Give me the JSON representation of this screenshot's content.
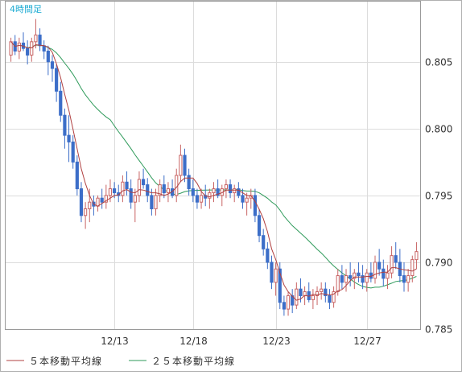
{
  "chart_data": {
    "type": "candlestick",
    "period_label": "4時間足",
    "ylim": [
      0.785,
      0.8095
    ],
    "y_ticks": [
      "0.805",
      "0.800",
      "0.795",
      "0.790",
      "0.785"
    ],
    "x_ticks": [
      {
        "label": "12/13",
        "index": 25
      },
      {
        "label": "12/18",
        "index": 44
      },
      {
        "label": "12/23",
        "index": 64
      },
      {
        "label": "12/27",
        "index": 86
      }
    ],
    "legend": [
      {
        "label": "５本移動平均線",
        "color": "#b04040"
      },
      {
        "label": "２５本移動平均線",
        "color": "#2e9a5a"
      }
    ],
    "colors": {
      "up": "#c86464",
      "down": "#3c6ec8",
      "ma5": "#b04040",
      "ma25": "#2e9a5a",
      "period_label": "#1aaad2"
    },
    "candles": [
      [
        0.8055,
        0.8068,
        0.805,
        0.8065
      ],
      [
        0.8065,
        0.807,
        0.8055,
        0.8058
      ],
      [
        0.8058,
        0.8068,
        0.8052,
        0.8064
      ],
      [
        0.8064,
        0.8072,
        0.8058,
        0.806
      ],
      [
        0.806,
        0.8066,
        0.8048,
        0.8055
      ],
      [
        0.8055,
        0.8068,
        0.805,
        0.8065
      ],
      [
        0.8065,
        0.8082,
        0.806,
        0.807
      ],
      [
        0.807,
        0.8075,
        0.8058,
        0.8062
      ],
      [
        0.8062,
        0.8066,
        0.8052,
        0.8058
      ],
      [
        0.8058,
        0.8062,
        0.804,
        0.805
      ],
      [
        0.805,
        0.8055,
        0.8035,
        0.8045
      ],
      [
        0.8045,
        0.8048,
        0.802,
        0.8028
      ],
      [
        0.8028,
        0.8035,
        0.8005,
        0.801
      ],
      [
        0.801,
        0.8015,
        0.7985,
        0.7995
      ],
      [
        0.7995,
        0.801,
        0.7975,
        0.799
      ],
      [
        0.799,
        0.7995,
        0.797,
        0.7975
      ],
      [
        0.7975,
        0.798,
        0.795,
        0.7955
      ],
      [
        0.7955,
        0.796,
        0.793,
        0.7935
      ],
      [
        0.7935,
        0.7945,
        0.7925,
        0.794
      ],
      [
        0.794,
        0.7955,
        0.793,
        0.7945
      ],
      [
        0.7945,
        0.795,
        0.7935,
        0.7942
      ],
      [
        0.7942,
        0.795,
        0.7938,
        0.7948
      ],
      [
        0.7948,
        0.7955,
        0.794,
        0.7945
      ],
      [
        0.7945,
        0.7958,
        0.794,
        0.795
      ],
      [
        0.795,
        0.7962,
        0.7945,
        0.7955
      ],
      [
        0.7955,
        0.796,
        0.7948,
        0.7952
      ],
      [
        0.7952,
        0.7958,
        0.7945,
        0.795
      ],
      [
        0.795,
        0.7965,
        0.7945,
        0.796
      ],
      [
        0.796,
        0.7968,
        0.795,
        0.7955
      ],
      [
        0.7955,
        0.7962,
        0.794,
        0.7945
      ],
      [
        0.7945,
        0.7955,
        0.793,
        0.795
      ],
      [
        0.795,
        0.7968,
        0.7945,
        0.7962
      ],
      [
        0.7962,
        0.797,
        0.7955,
        0.7958
      ],
      [
        0.7958,
        0.7963,
        0.7945,
        0.795
      ],
      [
        0.795,
        0.7955,
        0.7935,
        0.794
      ],
      [
        0.794,
        0.7955,
        0.7935,
        0.795
      ],
      [
        0.795,
        0.7962,
        0.7945,
        0.7958
      ],
      [
        0.7958,
        0.7965,
        0.7948,
        0.7952
      ],
      [
        0.7952,
        0.796,
        0.7945,
        0.7955
      ],
      [
        0.7955,
        0.7962,
        0.7948,
        0.795
      ],
      [
        0.795,
        0.797,
        0.7945,
        0.7965
      ],
      [
        0.7965,
        0.7988,
        0.796,
        0.798
      ],
      [
        0.798,
        0.7985,
        0.796,
        0.7965
      ],
      [
        0.7965,
        0.797,
        0.795,
        0.7955
      ],
      [
        0.7955,
        0.7962,
        0.7945,
        0.795
      ],
      [
        0.795,
        0.7955,
        0.794,
        0.7945
      ],
      [
        0.7945,
        0.7955,
        0.794,
        0.795
      ],
      [
        0.795,
        0.7958,
        0.7942,
        0.7948
      ],
      [
        0.7948,
        0.7955,
        0.794,
        0.7952
      ],
      [
        0.7952,
        0.796,
        0.7945,
        0.7955
      ],
      [
        0.7955,
        0.7962,
        0.7948,
        0.795
      ],
      [
        0.795,
        0.7958,
        0.7942,
        0.7955
      ],
      [
        0.7955,
        0.7962,
        0.7948,
        0.7958
      ],
      [
        0.7958,
        0.7962,
        0.7948,
        0.7952
      ],
      [
        0.7952,
        0.7958,
        0.7945,
        0.7955
      ],
      [
        0.7955,
        0.796,
        0.7948,
        0.795
      ],
      [
        0.795,
        0.7955,
        0.794,
        0.7945
      ],
      [
        0.7945,
        0.7952,
        0.7935,
        0.7948
      ],
      [
        0.7948,
        0.7955,
        0.794,
        0.795
      ],
      [
        0.795,
        0.7955,
        0.793,
        0.7935
      ],
      [
        0.7935,
        0.794,
        0.7915,
        0.792
      ],
      [
        0.792,
        0.7925,
        0.7905,
        0.791
      ],
      [
        0.791,
        0.7915,
        0.7895,
        0.79
      ],
      [
        0.79,
        0.7905,
        0.788,
        0.7885
      ],
      [
        0.7885,
        0.79,
        0.7875,
        0.7895
      ],
      [
        0.7895,
        0.79,
        0.7865,
        0.787
      ],
      [
        0.787,
        0.7875,
        0.786,
        0.7865
      ],
      [
        0.7865,
        0.7878,
        0.786,
        0.7875
      ],
      [
        0.7875,
        0.788,
        0.7862,
        0.7868
      ],
      [
        0.7868,
        0.7885,
        0.7865,
        0.788
      ],
      [
        0.788,
        0.7888,
        0.787,
        0.7875
      ],
      [
        0.7875,
        0.7882,
        0.7868,
        0.7878
      ],
      [
        0.7878,
        0.7885,
        0.787,
        0.7872
      ],
      [
        0.7872,
        0.788,
        0.7865,
        0.7875
      ],
      [
        0.7875,
        0.7882,
        0.7868,
        0.7878
      ],
      [
        0.7878,
        0.7885,
        0.7872,
        0.788
      ],
      [
        0.788,
        0.7885,
        0.787,
        0.7875
      ],
      [
        0.7875,
        0.788,
        0.7865,
        0.787
      ],
      [
        0.787,
        0.7882,
        0.7866,
        0.7878
      ],
      [
        0.7878,
        0.7895,
        0.7875,
        0.789
      ],
      [
        0.789,
        0.7898,
        0.788,
        0.7885
      ],
      [
        0.7885,
        0.7895,
        0.7878,
        0.789
      ],
      [
        0.789,
        0.79,
        0.7882,
        0.7888
      ],
      [
        0.7888,
        0.7895,
        0.788,
        0.7892
      ],
      [
        0.7892,
        0.79,
        0.7885,
        0.789
      ],
      [
        0.789,
        0.7898,
        0.788,
        0.7885
      ],
      [
        0.7885,
        0.7895,
        0.7878,
        0.7892
      ],
      [
        0.7892,
        0.79,
        0.7885,
        0.7888
      ],
      [
        0.7888,
        0.7905,
        0.7884,
        0.79
      ],
      [
        0.79,
        0.791,
        0.789,
        0.7895
      ],
      [
        0.7895,
        0.7902,
        0.7882,
        0.7888
      ],
      [
        0.7888,
        0.7898,
        0.788,
        0.7892
      ],
      [
        0.7892,
        0.7912,
        0.7888,
        0.7905
      ],
      [
        0.7905,
        0.7915,
        0.7895,
        0.79
      ],
      [
        0.79,
        0.791,
        0.7885,
        0.789
      ],
      [
        0.789,
        0.79,
        0.7878,
        0.7885
      ],
      [
        0.7885,
        0.7895,
        0.7878,
        0.789
      ],
      [
        0.789,
        0.7905,
        0.7885,
        0.7902
      ],
      [
        0.7902,
        0.7915,
        0.7895,
        0.7908
      ]
    ]
  }
}
